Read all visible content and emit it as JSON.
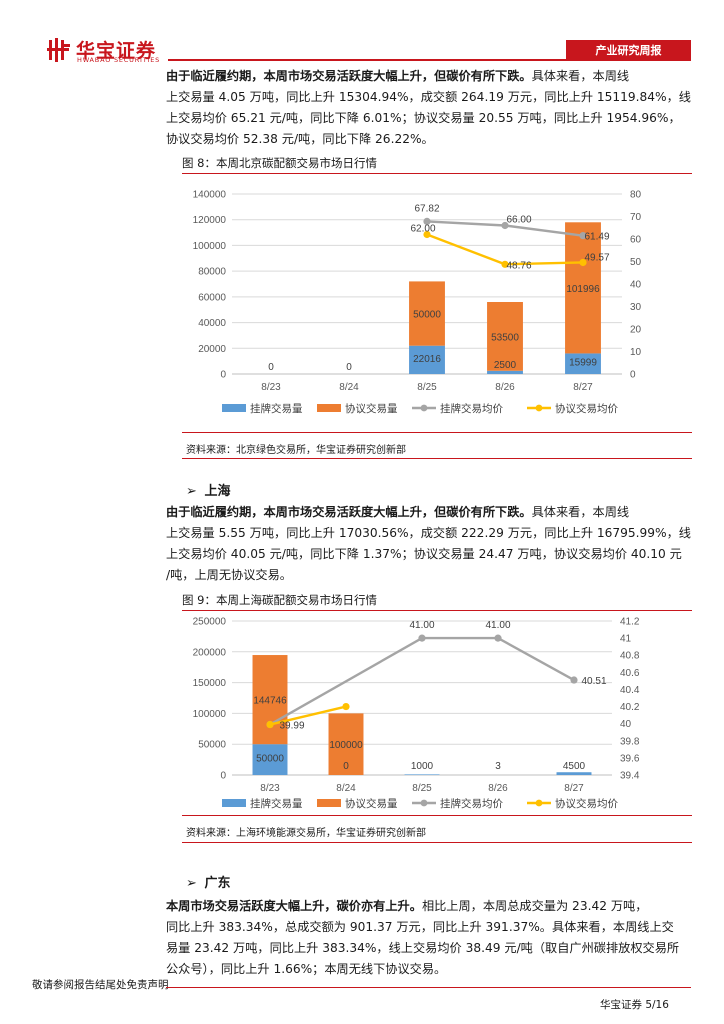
{
  "header": {
    "logo_cn": "华宝证券",
    "logo_en": "HWABAO SECURITIES",
    "tag": "产业研究周报"
  },
  "paragraphs": {
    "beijing": {
      "lead": "由于临近履约期，本周市场交易活跃度大幅上升，但碳价有所下跌。",
      "lines": [
        "具体来看，本周线",
        "上交易量 4.05 万吨，同比上升 15304.94%，成交额 264.19 万元，同比上升 15119.84%，线",
        "上交易均价 65.21 元/吨，同比下降 6.01%；协议交易量 20.55 万吨，同比上升 1954.96%，",
        "协议交易均价 52.38 元/吨，同比下降 26.22%。"
      ]
    },
    "shanghai": {
      "lead": "由于临近履约期，本周市场交易活跃度大幅上升，但碳价有所下跌。",
      "lines": [
        "具体来看，本周线",
        "上交易量 5.55 万吨，同比上升 17030.56%，成交额 222.29 万元，同比上升 16795.99%，线",
        "上交易均价 40.05 元/吨，同比下降 1.37%；协议交易量 24.47 万吨，协议交易均价 40.10 元",
        "/吨，上周无协议交易。"
      ]
    },
    "guangdong": {
      "lead": "本周市场交易活跃度大幅上升，碳价亦有上升。",
      "lines": [
        "相比上周，本周总成交量为 23.42 万吨，",
        "同比上升 383.34%，总成交额为 901.37 万元，同比上升 391.37%。具体来看，本周线上交",
        "易量 23.42 万吨，同比上升 383.34%，线上交易均价 38.49 元/吨（取自广州碳排放权交易所",
        "公众号），同比上升 1.66%；本周无线下协议交易。"
      ]
    }
  },
  "regions": {
    "shanghai": "上海",
    "guangdong": "广东"
  },
  "figures": {
    "fig8": {
      "title": "图 8：本周北京碳配额交易市场日行情",
      "source": "资料来源：北京绿色交易所，华宝证券研究创新部"
    },
    "fig9": {
      "title": "图 9：本周上海碳配额交易市场日行情",
      "source": "资料来源：上海环境能源交易所，华宝证券研究创新部"
    }
  },
  "chart_data": [
    {
      "type": "bar",
      "stacked": true,
      "categories": [
        "8/23",
        "8/24",
        "8/25",
        "8/26",
        "8/27"
      ],
      "y_left": {
        "min": 0,
        "max": 140000,
        "step": 20000,
        "ticks": [
          "0",
          "20000",
          "40000",
          "60000",
          "80000",
          "100000",
          "120000",
          "140000"
        ]
      },
      "y_right": {
        "min": 0,
        "max": 80,
        "step": 10,
        "ticks": [
          "0",
          "10",
          "20",
          "30",
          "40",
          "50",
          "60",
          "70",
          "80"
        ]
      },
      "series": [
        {
          "name": "挂牌交易量",
          "kind": "bar",
          "axis": "left",
          "color": "#5b9bd5",
          "values": [
            0,
            0,
            22016,
            2500,
            15999
          ],
          "labels": [
            "0",
            "0",
            "22016",
            "2500",
            "15999"
          ]
        },
        {
          "name": "协议交易量",
          "kind": "bar",
          "axis": "left",
          "color": "#ed7d31",
          "values": [
            0,
            0,
            50000,
            53500,
            101996
          ],
          "labels": [
            "",
            "",
            "50000",
            "53500",
            "101996"
          ]
        },
        {
          "name": "挂牌交易均价",
          "kind": "line",
          "axis": "right",
          "color": "#a5a5a5",
          "values": [
            null,
            null,
            67.82,
            66.0,
            61.49
          ],
          "labels": [
            "",
            "",
            "67.82",
            "66.00",
            "61.49"
          ]
        },
        {
          "name": "协议交易均价",
          "kind": "line",
          "axis": "right",
          "color": "#ffc000",
          "values": [
            null,
            null,
            62.0,
            48.76,
            49.57
          ],
          "labels": [
            "",
            "",
            "62.00",
            "48.76",
            "49.57"
          ]
        }
      ],
      "legend_position": "bottom"
    },
    {
      "type": "bar",
      "stacked": true,
      "categories": [
        "8/23",
        "8/24",
        "8/25",
        "8/26",
        "8/27"
      ],
      "y_left": {
        "min": 0,
        "max": 250000,
        "step": 50000,
        "ticks": [
          "0",
          "50000",
          "100000",
          "150000",
          "200000",
          "250000"
        ]
      },
      "y_right": {
        "min": 39.4,
        "max": 41.2,
        "step": 0.2,
        "ticks": [
          "39.4",
          "39.6",
          "39.8",
          "40",
          "40.2",
          "40.4",
          "40.6",
          "40.8",
          "41",
          "41.2"
        ]
      },
      "series": [
        {
          "name": "挂牌交易量",
          "kind": "bar",
          "axis": "left",
          "color": "#5b9bd5",
          "values": [
            50000,
            0,
            1000,
            3,
            4500
          ],
          "labels": [
            "50000",
            "0",
            "1000",
            "3",
            "4500"
          ]
        },
        {
          "name": "协议交易量",
          "kind": "bar",
          "axis": "left",
          "color": "#ed7d31",
          "values": [
            144746,
            100000,
            0,
            0,
            0
          ],
          "labels": [
            "144746",
            "100000",
            "",
            "",
            ""
          ]
        },
        {
          "name": "挂牌交易均价",
          "kind": "line",
          "axis": "right",
          "color": "#a5a5a5",
          "values": [
            39.99,
            null,
            41.0,
            41.0,
            40.51
          ],
          "labels": [
            "",
            "",
            "41.00",
            "41.00",
            "40.51"
          ]
        },
        {
          "name": "协议交易均价",
          "kind": "line",
          "axis": "right",
          "color": "#ffc000",
          "values": [
            39.99,
            40.2,
            null,
            null,
            null
          ],
          "labels": [
            "39.99",
            "",
            "",
            "",
            ""
          ]
        }
      ],
      "legend_position": "bottom"
    }
  ],
  "footer": {
    "disclaimer": "敬请参阅报告结尾处免责声明",
    "page": "华宝证券   5/16"
  }
}
